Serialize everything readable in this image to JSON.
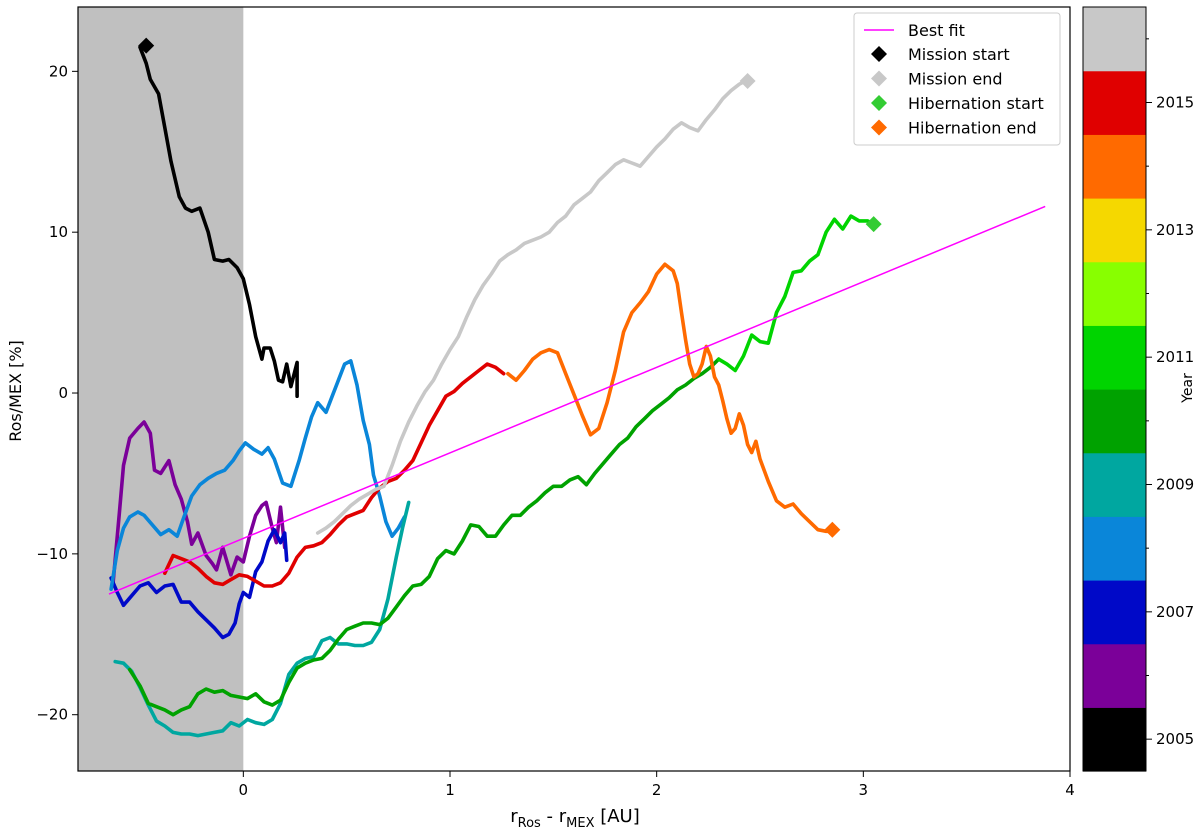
{
  "chart_data": {
    "type": "line",
    "title": "",
    "xlabel_main": "r",
    "xlabel_sub1": "Ros",
    "xlabel_dash": " - r",
    "xlabel_sub2": "MEX",
    "xlabel_unit": "  [AU]",
    "ylabel": "Ros/MEX [%]",
    "xlim": [
      -0.8,
      4.0
    ],
    "ylim": [
      -23.5,
      24.0
    ],
    "xticks": [
      0,
      1,
      2,
      3,
      4
    ],
    "yticks": [
      -20,
      -10,
      0,
      10,
      20
    ],
    "shaded_region_x": [
      -0.8,
      0.0
    ],
    "best_fit": {
      "name": "Best fit",
      "color": "#ff00ff",
      "x": [
        -0.65,
        3.88
      ],
      "y": [
        -12.5,
        11.6
      ]
    },
    "series": [
      {
        "year": "2005",
        "color": "#000000",
        "x": [
          -0.5,
          -0.47,
          -0.45,
          -0.41,
          -0.38,
          -0.35,
          -0.31,
          -0.28,
          -0.25,
          -0.21,
          -0.17,
          -0.14,
          -0.1,
          -0.07,
          -0.03,
          0.0,
          0.03,
          0.06,
          0.09,
          0.1,
          0.13,
          0.15,
          0.17,
          0.19,
          0.21,
          0.23,
          0.26,
          0.26
        ],
        "y": [
          21.5,
          20.5,
          19.5,
          18.6,
          16.5,
          14.4,
          12.2,
          11.5,
          11.3,
          11.5,
          10.0,
          8.3,
          8.2,
          8.3,
          7.8,
          7.1,
          5.5,
          3.5,
          2.1,
          2.8,
          2.8,
          2.0,
          0.8,
          0.7,
          1.8,
          0.4,
          1.9,
          -0.2
        ]
      },
      {
        "year": "2006",
        "color": "#7b0099",
        "x": [
          -0.63,
          -0.6,
          -0.58,
          -0.55,
          -0.51,
          -0.48,
          -0.45,
          -0.43,
          -0.4,
          -0.36,
          -0.33,
          -0.3,
          -0.27,
          -0.25,
          -0.22,
          -0.18,
          -0.15,
          -0.13,
          -0.1,
          -0.06,
          -0.03,
          0.0,
          0.03,
          0.06,
          0.09,
          0.11,
          0.14,
          0.16,
          0.18,
          0.2
        ],
        "y": [
          -11.8,
          -7.5,
          -4.5,
          -2.8,
          -2.2,
          -1.8,
          -2.5,
          -4.8,
          -5.0,
          -4.2,
          -5.7,
          -6.6,
          -8.0,
          -9.4,
          -8.7,
          -10.1,
          -10.6,
          -11.0,
          -9.6,
          -11.3,
          -10.2,
          -10.5,
          -8.9,
          -7.6,
          -7.0,
          -6.8,
          -8.4,
          -9.3,
          -7.1,
          -9.6
        ]
      },
      {
        "year": "2007",
        "color": "#0009c8",
        "x": [
          -0.64,
          -0.61,
          -0.58,
          -0.54,
          -0.5,
          -0.46,
          -0.42,
          -0.38,
          -0.34,
          -0.3,
          -0.26,
          -0.22,
          -0.18,
          -0.14,
          -0.1,
          -0.07,
          -0.04,
          -0.02,
          0.0,
          0.03,
          0.06,
          0.09,
          0.12,
          0.15,
          0.18,
          0.2,
          0.21
        ],
        "y": [
          -11.5,
          -12.4,
          -13.2,
          -12.6,
          -12.0,
          -11.8,
          -12.4,
          -12.0,
          -11.9,
          -13.0,
          -13.0,
          -13.6,
          -14.1,
          -14.6,
          -15.2,
          -15.0,
          -14.3,
          -13.1,
          -12.4,
          -12.7,
          -11.1,
          -10.5,
          -9.2,
          -8.5,
          -9.3,
          -8.7,
          -10.4
        ]
      },
      {
        "year": "2008",
        "color": "#0a86d9",
        "x": [
          -0.64,
          -0.61,
          -0.58,
          -0.55,
          -0.51,
          -0.48,
          -0.44,
          -0.4,
          -0.36,
          -0.32,
          -0.29,
          -0.25,
          -0.21,
          -0.17,
          -0.13,
          -0.09,
          -0.05,
          -0.02,
          0.01,
          0.05,
          0.09,
          0.12,
          0.15,
          0.19,
          0.23,
          0.27,
          0.3,
          0.33,
          0.36,
          0.4,
          0.43,
          0.46,
          0.49,
          0.52,
          0.55,
          0.58,
          0.61,
          0.63,
          0.66,
          0.69,
          0.72,
          0.75,
          0.78
        ],
        "y": [
          -12.2,
          -9.8,
          -8.4,
          -7.7,
          -7.4,
          -7.6,
          -8.2,
          -8.8,
          -8.5,
          -8.9,
          -7.8,
          -6.4,
          -5.7,
          -5.3,
          -5.0,
          -4.8,
          -4.2,
          -3.6,
          -3.1,
          -3.5,
          -3.8,
          -3.4,
          -4.1,
          -5.6,
          -5.8,
          -4.2,
          -2.8,
          -1.5,
          -0.6,
          -1.2,
          -0.2,
          0.8,
          1.8,
          2.0,
          0.5,
          -1.7,
          -3.2,
          -5.1,
          -6.4,
          -8.0,
          -8.9,
          -8.4,
          -7.7
        ]
      },
      {
        "year": "2009",
        "color": "#00a7a0",
        "x": [
          -0.62,
          -0.58,
          -0.54,
          -0.5,
          -0.46,
          -0.42,
          -0.38,
          -0.34,
          -0.3,
          -0.26,
          -0.22,
          -0.18,
          -0.14,
          -0.1,
          -0.06,
          -0.02,
          0.02,
          0.06,
          0.1,
          0.14,
          0.18,
          0.22,
          0.26,
          0.3,
          0.34,
          0.38,
          0.42,
          0.46,
          0.5,
          0.54,
          0.58,
          0.62,
          0.66,
          0.7,
          0.74,
          0.77,
          0.8
        ],
        "y": [
          -16.7,
          -16.8,
          -17.3,
          -18.3,
          -19.4,
          -20.4,
          -20.7,
          -21.1,
          -21.2,
          -21.2,
          -21.3,
          -21.2,
          -21.1,
          -21.0,
          -20.5,
          -20.7,
          -20.3,
          -20.5,
          -20.6,
          -20.3,
          -19.3,
          -17.5,
          -16.8,
          -16.5,
          -16.4,
          -15.4,
          -15.2,
          -15.6,
          -15.6,
          -15.7,
          -15.7,
          -15.5,
          -14.7,
          -12.8,
          -10.2,
          -8.4,
          -6.8
        ]
      },
      {
        "year": "2010",
        "color": "#00a200",
        "x": [
          -0.55,
          -0.5,
          -0.46,
          -0.42,
          -0.38,
          -0.34,
          -0.3,
          -0.26,
          -0.22,
          -0.18,
          -0.14,
          -0.1,
          -0.06,
          -0.02,
          0.02,
          0.06,
          0.1,
          0.14,
          0.18,
          0.22,
          0.26,
          0.3,
          0.34,
          0.38,
          0.42,
          0.46,
          0.5,
          0.54,
          0.58,
          0.62,
          0.66,
          0.7,
          0.74,
          0.78,
          0.82,
          0.86,
          0.9,
          0.94,
          0.98,
          1.02,
          1.06,
          1.1,
          1.14,
          1.18,
          1.22,
          1.26,
          1.3,
          1.34,
          1.38,
          1.42,
          1.46,
          1.5,
          1.54,
          1.58,
          1.62,
          1.66,
          1.7,
          1.74,
          1.78,
          1.82,
          1.86,
          1.9,
          1.94,
          1.98,
          2.02,
          2.06,
          2.1,
          2.14,
          2.18,
          2.22,
          2.26,
          2.3
        ],
        "y": [
          -17.2,
          -18.2,
          -19.3,
          -19.5,
          -19.7,
          -20.0,
          -19.7,
          -19.5,
          -18.7,
          -18.4,
          -18.6,
          -18.5,
          -18.8,
          -18.9,
          -19.0,
          -18.7,
          -19.2,
          -19.4,
          -19.1,
          -18.0,
          -17.1,
          -16.8,
          -16.6,
          -16.5,
          -16.0,
          -15.3,
          -14.7,
          -14.5,
          -14.3,
          -14.3,
          -14.4,
          -14.0,
          -13.3,
          -12.6,
          -12.0,
          -11.9,
          -11.4,
          -10.3,
          -9.8,
          -10.0,
          -9.2,
          -8.2,
          -8.3,
          -8.9,
          -8.9,
          -8.2,
          -7.6,
          -7.6,
          -7.1,
          -6.7,
          -6.2,
          -5.8,
          -5.8,
          -5.4,
          -5.2,
          -5.7,
          -5.0,
          -4.4,
          -3.8,
          -3.2,
          -2.8,
          -2.1,
          -1.6,
          -1.1,
          -0.7,
          -0.3,
          0.2,
          0.5,
          0.9,
          1.2,
          1.6,
          2.1
        ]
      },
      {
        "year": "2011",
        "color": "#00d400",
        "x": [
          2.3,
          2.34,
          2.38,
          2.42,
          2.46,
          2.5,
          2.54,
          2.58,
          2.62,
          2.66,
          2.7,
          2.74,
          2.78,
          2.82,
          2.86,
          2.9,
          2.94,
          2.98,
          3.02,
          3.05
        ],
        "y": [
          2.1,
          1.8,
          1.4,
          2.3,
          3.6,
          3.2,
          3.1,
          5.0,
          6.0,
          7.5,
          7.6,
          8.2,
          8.6,
          10.0,
          10.8,
          10.2,
          11.0,
          10.7,
          10.7,
          10.5
        ]
      },
      {
        "year": "2014",
        "color": "#ff6a00",
        "x": [
          1.28,
          1.32,
          1.36,
          1.4,
          1.44,
          1.48,
          1.52,
          1.56,
          1.6,
          1.64,
          1.68,
          1.72,
          1.76,
          1.8,
          1.84,
          1.88,
          1.92,
          1.96,
          2.0,
          2.04,
          2.08,
          2.1,
          2.12,
          2.14,
          2.16,
          2.18,
          2.2,
          2.22,
          2.24,
          2.26,
          2.28,
          2.3,
          2.32,
          2.34,
          2.36,
          2.38,
          2.4,
          2.42,
          2.44,
          2.46,
          2.48,
          2.5,
          2.54,
          2.58,
          2.62,
          2.66,
          2.7,
          2.74,
          2.78,
          2.82,
          2.85
        ],
        "y": [
          1.2,
          0.8,
          1.4,
          2.1,
          2.5,
          2.7,
          2.5,
          1.2,
          -0.1,
          -1.4,
          -2.6,
          -2.2,
          -0.6,
          1.4,
          3.8,
          5.0,
          5.6,
          6.3,
          7.4,
          8.0,
          7.6,
          6.8,
          5.0,
          3.3,
          1.8,
          1.0,
          1.2,
          1.8,
          2.9,
          2.3,
          1.0,
          0.5,
          -0.5,
          -1.6,
          -2.5,
          -2.2,
          -1.3,
          -2.0,
          -3.2,
          -3.7,
          -3.0,
          -4.1,
          -5.5,
          -6.7,
          -7.1,
          -6.9,
          -7.5,
          -8.0,
          -8.5,
          -8.6,
          -8.6
        ]
      },
      {
        "year": "2015",
        "color": "#e00000",
        "x": [
          -0.38,
          -0.34,
          -0.3,
          -0.26,
          -0.22,
          -0.18,
          -0.14,
          -0.1,
          -0.06,
          -0.02,
          0.02,
          0.06,
          0.1,
          0.14,
          0.18,
          0.22,
          0.26,
          0.3,
          0.34,
          0.38,
          0.42,
          0.46,
          0.5,
          0.54,
          0.58,
          0.62,
          0.66,
          0.7,
          0.74,
          0.78,
          0.82,
          0.86,
          0.9,
          0.94,
          0.98,
          1.02,
          1.06,
          1.1,
          1.14,
          1.18,
          1.22,
          1.26
        ],
        "y": [
          -11.2,
          -10.1,
          -10.3,
          -10.5,
          -10.9,
          -11.4,
          -11.8,
          -11.9,
          -11.6,
          -11.3,
          -11.4,
          -11.7,
          -12.0,
          -12.0,
          -11.8,
          -11.2,
          -10.2,
          -9.6,
          -9.5,
          -9.3,
          -8.8,
          -8.2,
          -7.7,
          -7.5,
          -7.3,
          -6.5,
          -5.9,
          -5.5,
          -5.3,
          -4.8,
          -4.2,
          -3.1,
          -2.0,
          -1.1,
          -0.2,
          0.1,
          0.6,
          1.0,
          1.4,
          1.8,
          1.6,
          1.2
        ]
      },
      {
        "year": "2016",
        "color": "#c8c8c8",
        "x": [
          0.36,
          0.4,
          0.44,
          0.48,
          0.52,
          0.56,
          0.6,
          0.64,
          0.68,
          0.72,
          0.76,
          0.8,
          0.84,
          0.88,
          0.92,
          0.96,
          1.0,
          1.04,
          1.08,
          1.12,
          1.16,
          1.2,
          1.24,
          1.28,
          1.32,
          1.36,
          1.4,
          1.44,
          1.48,
          1.52,
          1.56,
          1.6,
          1.64,
          1.68,
          1.72,
          1.76,
          1.8,
          1.84,
          1.88,
          1.92,
          1.96,
          2.0,
          2.04,
          2.08,
          2.12,
          2.16,
          2.2,
          2.24,
          2.28,
          2.32,
          2.36,
          2.4,
          2.43
        ],
        "y": [
          -8.7,
          -8.4,
          -8.0,
          -7.5,
          -7.0,
          -6.6,
          -6.3,
          -6.0,
          -5.8,
          -4.5,
          -3.0,
          -1.8,
          -0.8,
          0.1,
          0.8,
          1.8,
          2.7,
          3.5,
          4.7,
          5.8,
          6.7,
          7.4,
          8.2,
          8.6,
          8.9,
          9.3,
          9.5,
          9.7,
          10.0,
          10.6,
          11.0,
          11.7,
          12.1,
          12.5,
          13.2,
          13.7,
          14.2,
          14.5,
          14.3,
          14.1,
          14.7,
          15.3,
          15.8,
          16.4,
          16.8,
          16.5,
          16.3,
          17.0,
          17.6,
          18.3,
          18.8,
          19.2,
          19.4
        ]
      }
    ],
    "markers": [
      {
        "name": "Mission start",
        "color": "#000000",
        "x": -0.47,
        "y": 21.6
      },
      {
        "name": "Mission end",
        "color": "#c8c8c8",
        "x": 2.44,
        "y": 19.4
      },
      {
        "name": "Hibernation start",
        "color": "#33cc33",
        "x": 3.05,
        "y": 10.5
      },
      {
        "name": "Hibernation end",
        "color": "#ff6a00",
        "x": 2.85,
        "y": -8.5
      }
    ],
    "legend_position": "top-right",
    "colorbar": {
      "label": "Year",
      "colors": [
        "#000000",
        "#7b0099",
        "#0009c8",
        "#0a86d9",
        "#00a7a0",
        "#00a200",
        "#00d400",
        "#88ff00",
        "#f5d800",
        "#ff6a00",
        "#e00000",
        "#c8c8c8"
      ],
      "tick_labels": [
        "2005",
        "2007",
        "2009",
        "2011",
        "2013",
        "2015"
      ]
    }
  }
}
